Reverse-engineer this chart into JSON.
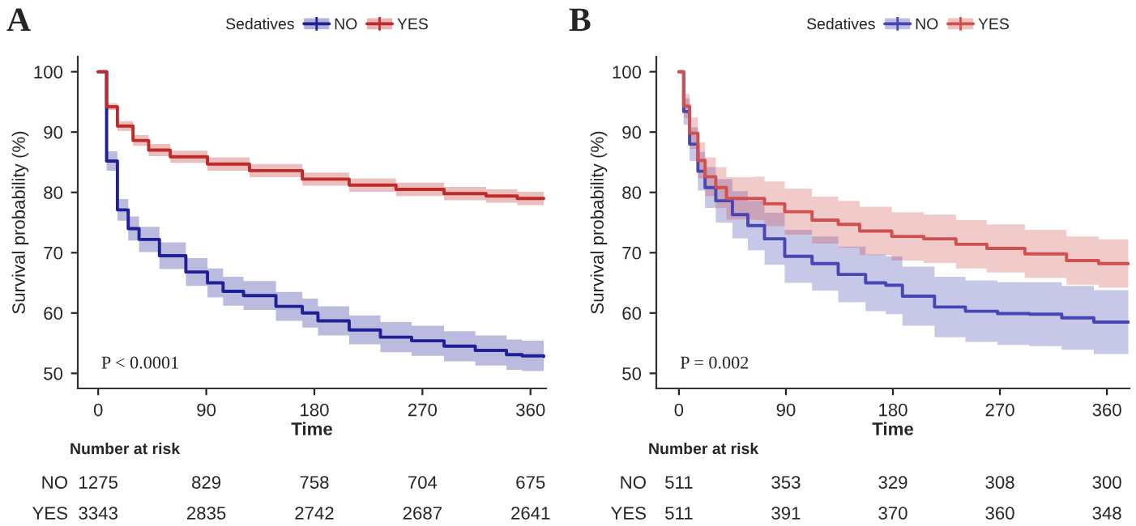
{
  "chart_data": [
    {
      "type": "step",
      "title": "A",
      "xlabel": "Time",
      "ylabel": "Survival probability (%)",
      "legend_title": "Sedatives",
      "legend": "top",
      "grid": false,
      "xlim": [
        -17,
        373
      ],
      "ylim": [
        47.5,
        102.5
      ],
      "xticks": [
        0,
        90,
        180,
        270,
        360
      ],
      "yticks": [
        50,
        60,
        70,
        80,
        90,
        100
      ],
      "series": [
        {
          "name": "NO",
          "color": "#1f1f96",
          "x": [
            0,
            7,
            16,
            25,
            34,
            51,
            73,
            91,
            104,
            121,
            148,
            170,
            183,
            209,
            235,
            261,
            288,
            314,
            340,
            353,
            371
          ],
          "values": [
            100,
            85.2,
            77.1,
            74,
            72.2,
            69.5,
            66.8,
            65,
            63.6,
            62.9,
            61.1,
            60,
            58.7,
            57.2,
            56,
            55.4,
            54.5,
            53.8,
            53.1,
            52.9,
            52.8
          ],
          "lower": [
            100,
            83.6,
            75.3,
            72,
            70.1,
            67.3,
            64.5,
            62.6,
            61.2,
            60.5,
            58.7,
            57.6,
            56.3,
            54.8,
            53.5,
            52.9,
            52,
            51.3,
            50.6,
            50.4,
            50.3
          ],
          "upper": [
            100,
            86.8,
            78.9,
            76,
            74.3,
            71.7,
            69.1,
            67.4,
            66,
            65.3,
            63.5,
            62.4,
            61.1,
            59.6,
            58.5,
            57.9,
            57,
            56.3,
            55.6,
            55.4,
            55.3
          ]
        },
        {
          "name": "YES",
          "color": "#bf2a2a",
          "x": [
            0,
            7,
            16,
            29,
            42,
            60,
            91,
            126,
            170,
            209,
            248,
            288,
            323,
            349,
            371
          ],
          "values": [
            100,
            94.2,
            91,
            88.6,
            87,
            85.9,
            84.7,
            83.6,
            82.2,
            81.2,
            80.5,
            79.8,
            79.4,
            79,
            79
          ],
          "lower": [
            100,
            93.6,
            90.2,
            87.7,
            86,
            84.9,
            83.6,
            82.5,
            81.1,
            80.1,
            79.4,
            78.7,
            78.3,
            77.9,
            77.9
          ],
          "upper": [
            100,
            94.8,
            91.8,
            89.5,
            88,
            86.9,
            85.8,
            84.7,
            83.3,
            82.3,
            81.6,
            80.9,
            80.5,
            80.1,
            80.1
          ]
        }
      ],
      "annotations": [
        "P < 0.0001",
        "Number at risk",
        "NO",
        "1275",
        "829",
        "758",
        "704",
        "675",
        "YES",
        "3343",
        "2835",
        "2742",
        "2687",
        "2641"
      ]
    },
    {
      "type": "step",
      "title": "B",
      "xlabel": "Time",
      "ylabel": "Survival probability (%)",
      "legend_title": "Sedatives",
      "legend": "top",
      "grid": false,
      "xlim": [
        -19,
        379
      ],
      "ylim": [
        47.5,
        102.5
      ],
      "xticks": [
        0,
        90,
        180,
        270,
        360
      ],
      "yticks": [
        50,
        60,
        70,
        80,
        90,
        100
      ],
      "series": [
        {
          "name": "NO",
          "color": "#4646b4",
          "x": [
            0,
            4,
            9,
            16,
            22,
            31,
            45,
            58,
            72,
            89,
            112,
            134,
            157,
            174,
            188,
            215,
            241,
            268,
            295,
            322,
            349,
            378
          ],
          "values": [
            100,
            93.4,
            88,
            83.5,
            80.8,
            78.6,
            76.3,
            74.5,
            72.3,
            69.4,
            68.2,
            66.4,
            65,
            64.6,
            62.8,
            61,
            60.3,
            59.9,
            59.8,
            59.2,
            58.5,
            58.5
          ],
          "lower": [
            100,
            91.2,
            85.2,
            80.3,
            77.4,
            75,
            72.4,
            70.4,
            68,
            65,
            63.7,
            61.8,
            60.3,
            59.8,
            57.9,
            56,
            55.2,
            54.7,
            54.5,
            53.9,
            53.2,
            53.2
          ],
          "upper": [
            100,
            95.6,
            90.8,
            86.7,
            84.2,
            82.2,
            80.2,
            78.6,
            76.6,
            73.8,
            72.7,
            71,
            69.7,
            69.4,
            67.7,
            66,
            65.4,
            65.1,
            65.1,
            64.5,
            63.8,
            63.8
          ]
        },
        {
          "name": "YES",
          "color": "#d05050",
          "x": [
            0,
            4,
            9,
            16,
            22,
            31,
            40,
            63,
            72,
            89,
            112,
            134,
            152,
            179,
            206,
            233,
            259,
            291,
            326,
            353,
            378
          ],
          "values": [
            100,
            94.3,
            89.8,
            85.3,
            82.6,
            80.8,
            79,
            79,
            78.1,
            76.8,
            75.4,
            74.7,
            73.6,
            72.7,
            72.3,
            71.4,
            70.7,
            69.8,
            68.7,
            68.2,
            68.2
          ],
          "lower": [
            100,
            92.3,
            87.2,
            82.3,
            79.4,
            77.4,
            75.5,
            75.4,
            74.4,
            73,
            71.5,
            70.8,
            69.6,
            68.7,
            68.3,
            67.4,
            66.7,
            65.8,
            64.7,
            64.2,
            64.2
          ],
          "upper": [
            100,
            96.3,
            92.4,
            88.3,
            85.8,
            84.2,
            82.5,
            82.6,
            81.8,
            80.6,
            79.3,
            78.6,
            77.6,
            76.7,
            76.3,
            75.4,
            74.7,
            73.8,
            72.7,
            72.2,
            72.2
          ]
        }
      ],
      "annotations": [
        "P = 0.002",
        "Number at risk",
        "NO",
        "511",
        "353",
        "329",
        "308",
        "300",
        "YES",
        "511",
        "391",
        "370",
        "360",
        "348"
      ]
    }
  ]
}
